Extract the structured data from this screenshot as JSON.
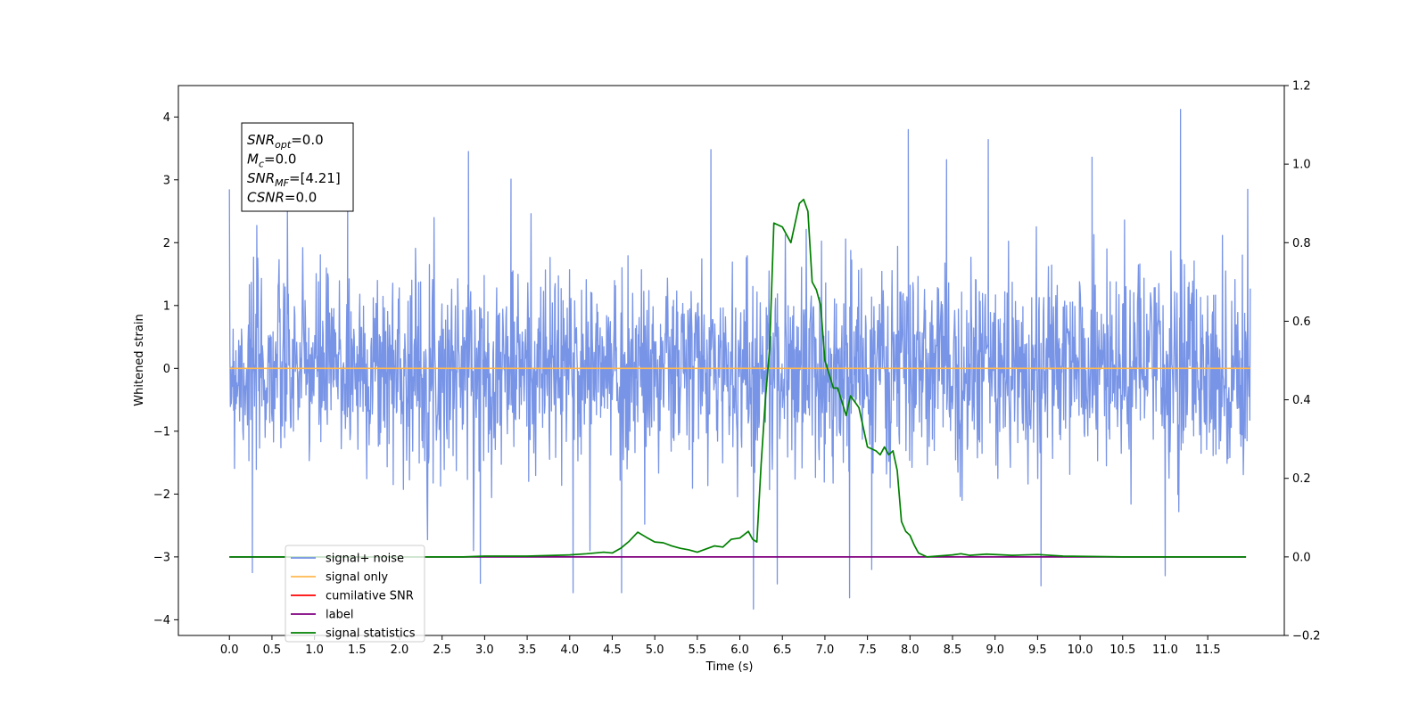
{
  "chart_data": {
    "type": "line",
    "xlabel": "Time (s)",
    "ylabel": "Whitened strain",
    "xlim": [
      -0.6,
      12.4
    ],
    "ylim": [
      -4.25,
      4.5
    ],
    "y2lim": [
      -0.2,
      1.2
    ],
    "x_ticks": [
      "0.0",
      "0.5",
      "1.0",
      "1.5",
      "2.0",
      "2.5",
      "3.0",
      "3.5",
      "4.0",
      "4.5",
      "5.0",
      "5.5",
      "6.0",
      "6.5",
      "7.0",
      "7.5",
      "8.0",
      "8.5",
      "9.0",
      "9.5",
      "10.0",
      "10.5",
      "11.0",
      "11.5"
    ],
    "y_ticks": [
      -4,
      -3,
      -2,
      -1,
      0,
      1,
      2,
      3,
      4
    ],
    "y2_ticks": [
      "−0.2",
      "0.0",
      "0.2",
      "0.4",
      "0.6",
      "0.8",
      "1.0",
      "1.2"
    ],
    "grid": false,
    "legend_position": "lower-left",
    "annotation": [
      {
        "name": "SNR",
        "sub": "opt",
        "value": "=0.0"
      },
      {
        "name": "M",
        "sub": "c",
        "value": "=0.0"
      },
      {
        "name": "SNR",
        "sub": "MF",
        "value": "=[4.21]"
      },
      {
        "name": "CSNR",
        "sub": "",
        "value": "=0.0"
      }
    ],
    "series": [
      {
        "name": "signal+ noise",
        "color": "#7894e6",
        "axis": "left",
        "x_range": [
          0.0,
          12.0
        ],
        "style": "noise",
        "envelope_sigma": 0.78,
        "spikes": [
          {
            "x": 0.27,
            "y": -3.25
          },
          {
            "x": 2.81,
            "y": 3.45
          },
          {
            "x": 2.95,
            "y": -3.42
          },
          {
            "x": 4.04,
            "y": -3.57
          },
          {
            "x": 4.61,
            "y": -3.57
          },
          {
            "x": 5.66,
            "y": 3.48
          },
          {
            "x": 6.16,
            "y": -3.83
          },
          {
            "x": 6.44,
            "y": -3.43
          },
          {
            "x": 7.29,
            "y": -3.65
          },
          {
            "x": 7.98,
            "y": 3.8
          },
          {
            "x": 9.54,
            "y": -3.46
          },
          {
            "x": 10.14,
            "y": 3.36
          },
          {
            "x": 11.18,
            "y": 4.12
          },
          {
            "x": 11.0,
            "y": -3.3
          },
          {
            "x": 11.97,
            "y": 2.85
          },
          {
            "x": 8.92,
            "y": 3.64
          },
          {
            "x": 8.43,
            "y": 3.32
          },
          {
            "x": 3.31,
            "y": 3.01
          },
          {
            "x": 1.39,
            "y": 3.18
          },
          {
            "x": 7.55,
            "y": -3.2
          }
        ]
      },
      {
        "name": "signal only",
        "color": "#ffb84d",
        "axis": "left",
        "x": [
          0.0,
          12.0
        ],
        "y": [
          0.0,
          0.0
        ]
      },
      {
        "name": "cumilative SNR",
        "color": "#ff0000",
        "axis": "left",
        "x": [],
        "y": []
      },
      {
        "name": "label",
        "color": "#800080",
        "axis": "right",
        "x": [
          0.0,
          11.95
        ],
        "y": [
          0.0,
          0.0
        ]
      },
      {
        "name": "signal statistics",
        "color": "#008000",
        "axis": "right",
        "x": [
          0.0,
          2.75,
          3.0,
          3.5,
          4.0,
          4.2,
          4.4,
          4.5,
          4.6,
          4.7,
          4.8,
          4.9,
          5.0,
          5.1,
          5.2,
          5.3,
          5.4,
          5.5,
          5.6,
          5.7,
          5.8,
          5.9,
          6.0,
          6.1,
          6.15,
          6.2,
          6.25,
          6.3,
          6.35,
          6.4,
          6.5,
          6.6,
          6.7,
          6.75,
          6.8,
          6.85,
          6.9,
          6.95,
          7.0,
          7.1,
          7.15,
          7.25,
          7.3,
          7.4,
          7.5,
          7.6,
          7.65,
          7.7,
          7.75,
          7.8,
          7.85,
          7.9,
          7.95,
          8.0,
          8.05,
          8.1,
          8.2,
          8.5,
          8.6,
          8.7,
          8.9,
          9.2,
          9.5,
          9.8,
          10.5,
          11.95
        ],
        "y": [
          0.0,
          0.0,
          0.002,
          0.002,
          0.005,
          0.008,
          0.012,
          0.01,
          0.022,
          0.04,
          0.063,
          0.05,
          0.038,
          0.036,
          0.028,
          0.022,
          0.018,
          0.012,
          0.02,
          0.028,
          0.025,
          0.045,
          0.048,
          0.065,
          0.045,
          0.038,
          0.235,
          0.4,
          0.53,
          0.85,
          0.84,
          0.8,
          0.9,
          0.91,
          0.88,
          0.7,
          0.68,
          0.64,
          0.5,
          0.43,
          0.43,
          0.36,
          0.41,
          0.38,
          0.28,
          0.27,
          0.26,
          0.28,
          0.26,
          0.27,
          0.22,
          0.09,
          0.065,
          0.055,
          0.03,
          0.01,
          0.0,
          0.005,
          0.008,
          0.004,
          0.007,
          0.004,
          0.006,
          0.002,
          0.0,
          0.0
        ]
      }
    ]
  }
}
